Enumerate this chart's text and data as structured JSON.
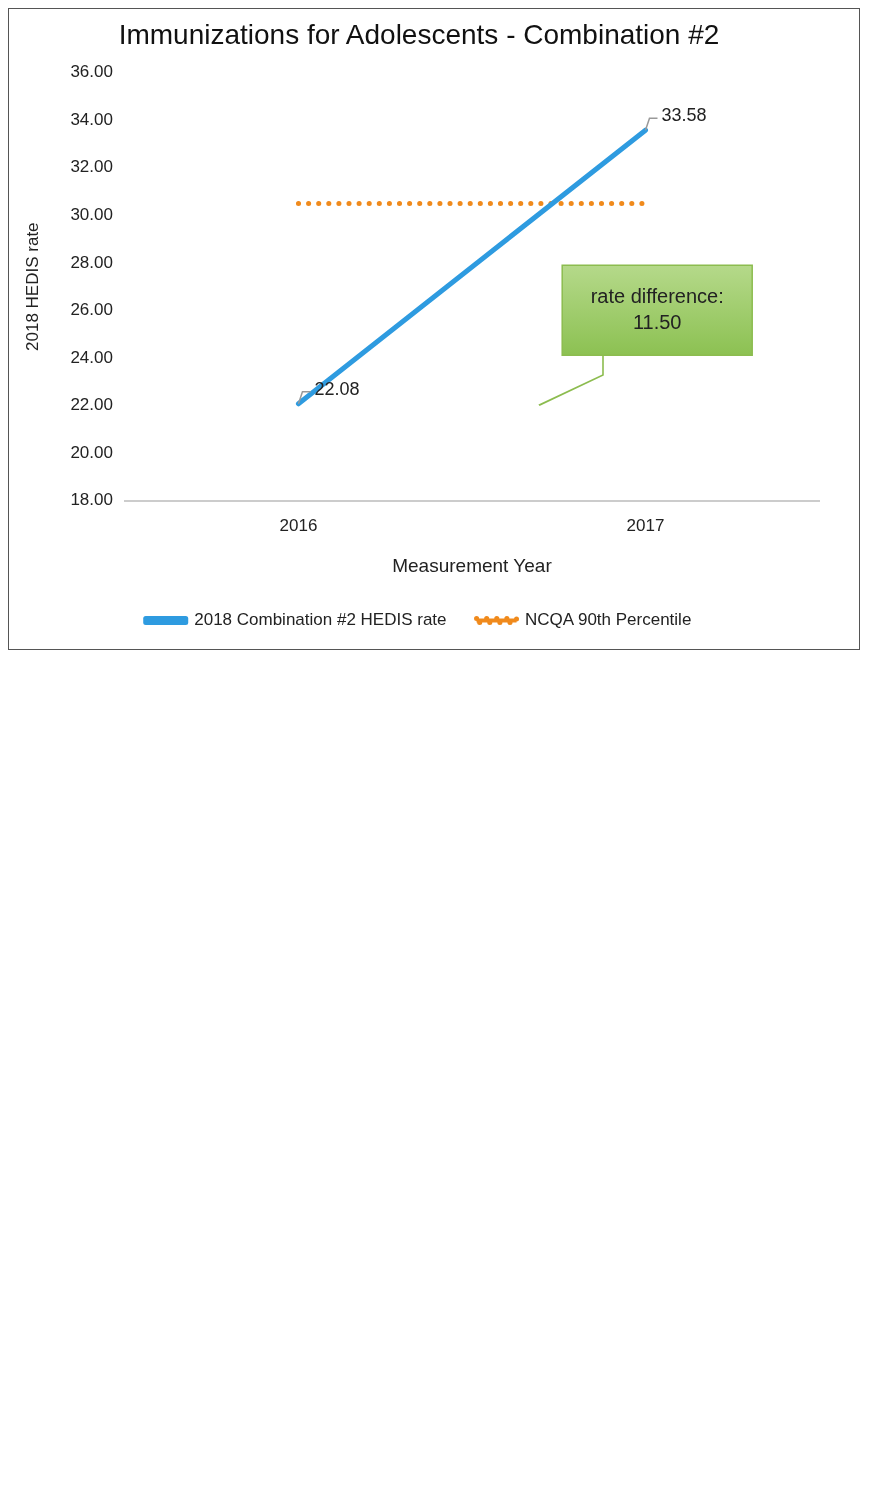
{
  "chart_data": {
    "type": "line",
    "title": "Immunizations for Adolescents - Combination #2",
    "xlabel": "Measurement Year",
    "ylabel": "2018 HEDIS rate",
    "categories": [
      "2016",
      "2017"
    ],
    "series": [
      {
        "name": "2018 Combination #2 HEDIS rate",
        "color": "#2e9be0",
        "values": [
          22.08,
          33.58
        ],
        "value_labels": [
          "22.08",
          "33.58"
        ],
        "line_style": "solid"
      },
      {
        "name": "NCQA 90th Percentile",
        "color": "#f08a1c",
        "values": [
          30.5,
          30.5
        ],
        "line_style": "dotted"
      }
    ],
    "ylim": [
      18,
      36
    ],
    "yticks": [
      {
        "value": 18,
        "label": "18.00"
      },
      {
        "value": 20,
        "label": "20.00"
      },
      {
        "value": 22,
        "label": "22.00"
      },
      {
        "value": 24,
        "label": "24.00"
      },
      {
        "value": 26,
        "label": "26.00"
      },
      {
        "value": 28,
        "label": "28.00"
      },
      {
        "value": 30,
        "label": "30.00"
      },
      {
        "value": 32,
        "label": "32.00"
      },
      {
        "value": 34,
        "label": "34.00"
      },
      {
        "value": 36,
        "label": "36.00"
      }
    ],
    "annotations": [
      "rate difference: 11.50"
    ],
    "grid": false,
    "legend": "bottom",
    "marker": "none"
  }
}
